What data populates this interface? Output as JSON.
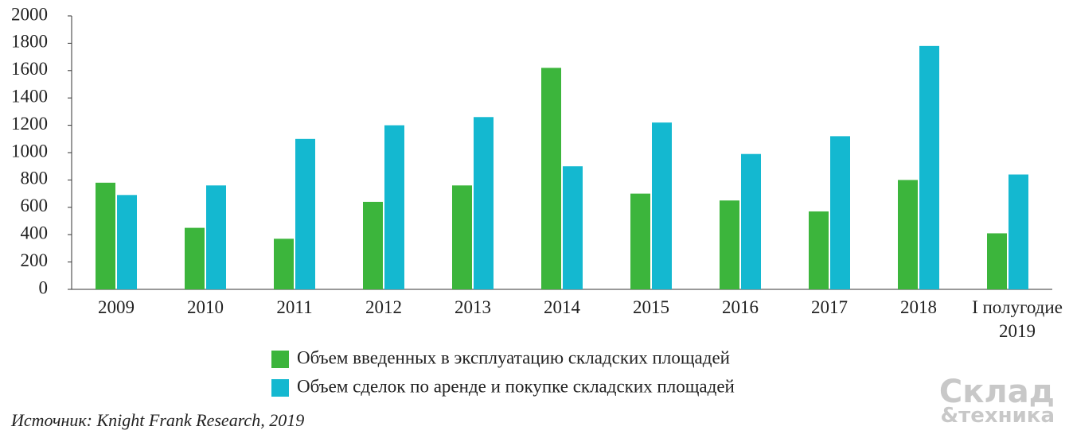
{
  "chart_data": {
    "type": "bar",
    "categories": [
      "2009",
      "2010",
      "2011",
      "2012",
      "2013",
      "2014",
      "2015",
      "2016",
      "2017",
      "2018",
      "I полугодие 2019"
    ],
    "series": [
      {
        "name": "Объем введенных в эксплуатацию складских площадей",
        "color": "#3cb53c",
        "values": [
          780,
          450,
          370,
          640,
          760,
          1620,
          700,
          650,
          570,
          800,
          410
        ]
      },
      {
        "name": "Объем сделок по аренде и покупке складских площадей",
        "color": "#14b8d0",
        "values": [
          690,
          760,
          1100,
          1200,
          1260,
          900,
          1220,
          990,
          1120,
          1780,
          840
        ]
      }
    ],
    "ylim": [
      0,
      2000
    ],
    "yticks": [
      0,
      200,
      400,
      600,
      800,
      1000,
      1200,
      1400,
      1600,
      1800,
      2000
    ],
    "grid": false,
    "source": "Источник: Knight Frank Research, 2019"
  },
  "logo": {
    "line1": "Склад",
    "line2": "&техника"
  }
}
